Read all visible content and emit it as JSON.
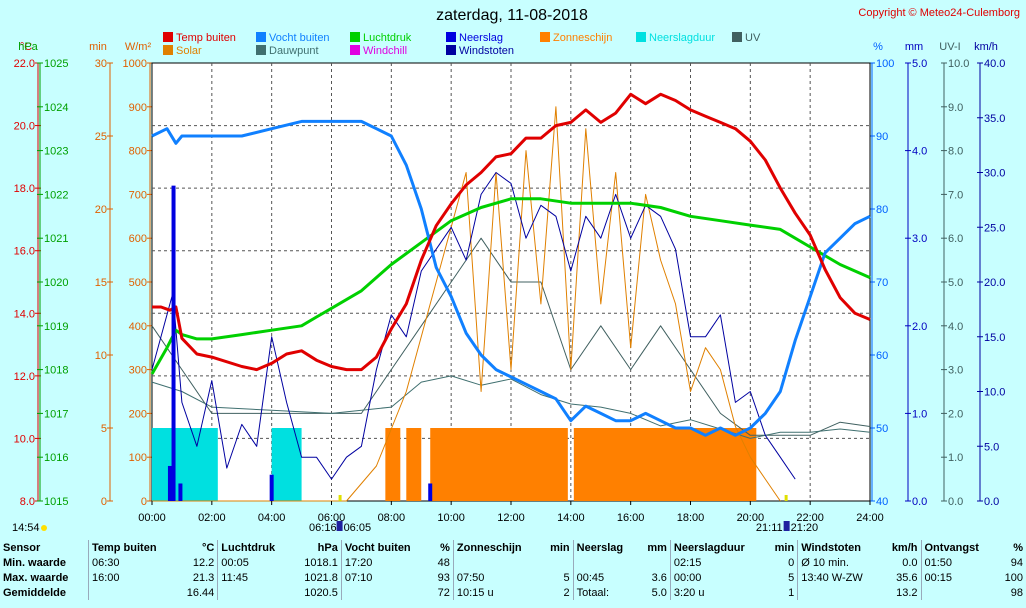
{
  "chart_data": {
    "type": "line",
    "title": "zaterdag, 11-08-2018",
    "copyright": "Copyright © Meteo24-Culemborg",
    "x_range_hours": [
      0,
      24
    ],
    "x_ticks": [
      "00:00",
      "02:00",
      "04:00",
      "06:00",
      "08:00",
      "10:00",
      "12:00",
      "14:00",
      "16:00",
      "18:00",
      "20:00",
      "22:00",
      "24:00"
    ],
    "axes": [
      {
        "unit": "°C",
        "color": "#e00000",
        "range": [
          8,
          22
        ],
        "ticks": [
          "8.0",
          "10.0",
          "12.0",
          "14.0",
          "16.0",
          "18.0",
          "20.0",
          "22.0"
        ]
      },
      {
        "unit": "hPa",
        "color": "#00a000",
        "range": [
          1015,
          1025
        ],
        "ticks": [
          "1015",
          "1016",
          "1017",
          "1018",
          "1019",
          "1020",
          "1021",
          "1022",
          "1023",
          "1024",
          "1025"
        ]
      },
      {
        "unit": "min",
        "color": "#e06000",
        "range": [
          0,
          30
        ],
        "ticks": [
          "0",
          "5",
          "10",
          "15",
          "20",
          "25",
          "30"
        ]
      },
      {
        "unit": "W/m²",
        "color": "#e06000",
        "range": [
          0,
          1000
        ],
        "ticks": [
          "0",
          "100",
          "200",
          "300",
          "400",
          "500",
          "600",
          "700",
          "800",
          "900",
          "1000"
        ]
      },
      {
        "unit": "%",
        "color": "#0060ff",
        "range": [
          40,
          100
        ],
        "ticks": [
          "40",
          "50",
          "60",
          "70",
          "80",
          "90",
          "100"
        ]
      },
      {
        "unit": "mm",
        "color": "#0000c0",
        "range": [
          0,
          5
        ],
        "ticks": [
          "0.0",
          "1.0",
          "2.0",
          "3.0",
          "4.0",
          "5.0"
        ]
      },
      {
        "unit": "UV-I",
        "color": "#406060",
        "range": [
          0,
          10
        ],
        "ticks": [
          "0.0",
          "1.0",
          "2.0",
          "3.0",
          "4.0",
          "5.0",
          "6.0",
          "7.0",
          "8.0",
          "9.0",
          "10.0"
        ]
      },
      {
        "unit": "km/h",
        "color": "#0000a0",
        "range": [
          0,
          40
        ],
        "ticks": [
          "0.0",
          "5.0",
          "10.0",
          "15.0",
          "20.0",
          "25.0",
          "30.0",
          "35.0",
          "40.0"
        ]
      }
    ],
    "legend": [
      {
        "label": "Temp buiten",
        "color": "#e00000"
      },
      {
        "label": "Vocht buiten",
        "color": "#1080ff"
      },
      {
        "label": "Luchtdruk",
        "color": "#00d000"
      },
      {
        "label": "Neerslag",
        "color": "#0000e0"
      },
      {
        "label": "Zonneschijn",
        "color": "#ff8000"
      },
      {
        "label": "Neerslagduur",
        "color": "#00e0e0"
      },
      {
        "label": "UV",
        "color": "#406060"
      },
      {
        "label": "Solar",
        "color": "#e08000"
      },
      {
        "label": "Dauwpunt",
        "color": "#407070"
      },
      {
        "label": "Windchill",
        "color": "#e000e0"
      },
      {
        "label": "Windstoten",
        "color": "#0000a0"
      }
    ],
    "series": [
      {
        "name": "Temp buiten",
        "unit": "°C",
        "x": [
          0,
          0.3,
          0.6,
          0.8,
          1.0,
          1.5,
          2.0,
          3.0,
          3.5,
          4.0,
          4.5,
          5.0,
          5.5,
          6.0,
          6.5,
          7.0,
          7.5,
          8.0,
          8.5,
          9.0,
          9.5,
          10.0,
          10.5,
          11.0,
          11.5,
          12.0,
          12.5,
          13.0,
          13.5,
          14.0,
          14.5,
          15.0,
          15.5,
          16.0,
          16.5,
          17.0,
          17.5,
          18.0,
          18.5,
          19.0,
          19.5,
          20.0,
          20.5,
          21.0,
          21.5,
          22.0,
          22.5,
          23.0,
          23.5,
          24.0
        ],
        "values": [
          14.2,
          14.2,
          14.1,
          14.2,
          13.2,
          12.7,
          12.6,
          12.3,
          12.2,
          12.4,
          12.7,
          12.8,
          12.5,
          12.3,
          12.2,
          12.2,
          12.6,
          13.5,
          14.3,
          15.7,
          16.8,
          17.5,
          18.1,
          18.5,
          19.0,
          19.1,
          19.6,
          19.6,
          20.0,
          20.1,
          20.5,
          20.1,
          20.4,
          21.0,
          20.7,
          21.0,
          20.8,
          20.5,
          20.3,
          20.1,
          19.9,
          19.5,
          18.9,
          18.0,
          17.2,
          16.5,
          15.4,
          14.5,
          14.0,
          13.8
        ]
      },
      {
        "name": "Vocht buiten",
        "unit": "%",
        "x": [
          0,
          0.5,
          0.8,
          1.0,
          1.5,
          2.0,
          3.0,
          4.0,
          5.0,
          6.0,
          7.0,
          7.5,
          8.0,
          8.5,
          9.0,
          9.5,
          10.0,
          10.5,
          11.0,
          11.5,
          12.0,
          12.5,
          13.0,
          13.5,
          14.0,
          14.5,
          15.0,
          15.5,
          16.0,
          16.5,
          17.0,
          17.5,
          18.0,
          18.5,
          19.0,
          19.5,
          20.0,
          20.5,
          21.0,
          21.5,
          22.0,
          22.5,
          23.0,
          23.5,
          24.0
        ],
        "values": [
          90,
          91,
          89,
          90,
          90,
          90,
          90,
          91,
          92,
          92,
          92,
          91,
          90,
          86,
          80,
          72,
          68,
          63,
          60,
          58,
          57,
          56,
          55,
          54,
          51,
          53,
          52,
          51,
          51,
          52,
          51,
          50,
          50,
          49,
          50,
          49,
          50,
          52,
          55,
          62,
          68,
          74,
          76,
          78,
          79
        ]
      },
      {
        "name": "Luchtdruk",
        "unit": "hPa",
        "x": [
          0,
          0.5,
          0.8,
          1.0,
          1.5,
          2.0,
          3.0,
          4.0,
          5.0,
          5.5,
          6.0,
          7.0,
          8.0,
          9.0,
          10.0,
          11.0,
          12.0,
          13.0,
          14.0,
          15.0,
          16.0,
          17.0,
          18.0,
          19.0,
          20.0,
          21.0,
          21.5,
          22.0,
          23.0,
          24.0
        ],
        "values": [
          1017.9,
          1018.5,
          1018.9,
          1018.8,
          1018.7,
          1018.7,
          1018.8,
          1018.9,
          1019.0,
          1019.2,
          1019.4,
          1019.8,
          1020.4,
          1020.9,
          1021.4,
          1021.7,
          1021.9,
          1021.9,
          1021.8,
          1021.8,
          1021.8,
          1021.7,
          1021.5,
          1021.4,
          1021.3,
          1021.2,
          1021.0,
          1020.8,
          1020.4,
          1020.1
        ]
      },
      {
        "name": "Neerslag",
        "unit": "mm",
        "bars": [
          {
            "x": 0.6,
            "value": 0.4
          },
          {
            "x": 0.72,
            "value": 3.6
          },
          {
            "x": 0.95,
            "value": 0.2
          },
          {
            "x": 4.0,
            "value": 0.3
          },
          {
            "x": 9.3,
            "value": 0.2
          }
        ]
      },
      {
        "name": "Neerslagduur",
        "unit": "min",
        "blocks": [
          [
            0,
            2.2
          ],
          [
            4.0,
            5.0
          ]
        ],
        "value": 5
      },
      {
        "name": "Zonneschijn",
        "unit": "min",
        "blocks": [
          [
            7.8,
            8.3
          ],
          [
            8.5,
            9.0
          ],
          [
            9.3,
            13.9
          ],
          [
            14.1,
            20.2
          ]
        ],
        "value": 5
      },
      {
        "name": "Windstoten",
        "unit": "km/h",
        "x": [
          0,
          0.7,
          1.0,
          1.5,
          2.0,
          2.5,
          3.0,
          3.5,
          4.0,
          4.5,
          5.0,
          5.5,
          6.0,
          6.5,
          7.0,
          7.5,
          8.0,
          8.5,
          9.0,
          9.5,
          10.0,
          10.5,
          11.0,
          11.5,
          12.0,
          12.5,
          13.0,
          13.5,
          14.0,
          14.5,
          15.0,
          15.5,
          16.0,
          16.5,
          17.0,
          17.5,
          18.0,
          18.5,
          19.0,
          19.5,
          20.0,
          20.5,
          21.0,
          21.5
        ],
        "values": [
          12,
          19,
          9,
          5,
          11,
          3,
          7,
          5,
          15,
          9,
          4,
          4,
          2,
          4,
          5,
          12,
          17,
          15,
          21,
          23,
          25,
          22,
          28,
          30,
          29,
          24,
          27,
          26,
          21,
          26,
          24,
          28,
          24,
          27,
          26,
          23,
          15,
          15,
          17,
          9,
          10,
          6,
          4,
          2
        ]
      },
      {
        "name": "UV",
        "unit": "UV-I",
        "x": [
          0,
          1,
          2,
          3,
          4,
          5,
          6,
          7,
          8,
          9,
          10,
          11,
          12,
          13,
          14,
          15,
          16,
          17,
          18,
          19,
          20,
          21,
          22,
          23,
          24
        ],
        "values": [
          4,
          3,
          2,
          2,
          2,
          2,
          2,
          2,
          3,
          4,
          5,
          6,
          5,
          5,
          3,
          4,
          3,
          4,
          3,
          2,
          1.5,
          1.5,
          1.5,
          1.8,
          1.7
        ]
      },
      {
        "name": "Solar",
        "unit": "W/m²",
        "x": [
          0,
          6.5,
          7.5,
          8.5,
          9.5,
          10.5,
          11.0,
          11.5,
          12.0,
          12.5,
          13.0,
          13.5,
          14.0,
          14.5,
          15.0,
          15.5,
          16.0,
          16.5,
          17.0,
          17.5,
          18.0,
          18.5,
          19.0,
          19.5,
          20.0,
          20.5,
          21.0
        ],
        "values": [
          0,
          0,
          80,
          250,
          500,
          750,
          250,
          750,
          300,
          800,
          450,
          900,
          300,
          850,
          450,
          750,
          350,
          700,
          550,
          450,
          250,
          350,
          300,
          170,
          100,
          50,
          0
        ]
      },
      {
        "name": "Dauwpunt",
        "unit": "°C",
        "x": [
          0,
          1,
          2,
          4,
          6,
          8,
          9,
          10,
          11,
          12,
          13,
          14,
          15,
          16,
          17,
          18,
          19,
          20,
          21,
          22,
          23,
          24
        ],
        "values": [
          11.8,
          11.5,
          11.0,
          10.9,
          10.8,
          11.0,
          11.8,
          12.0,
          11.7,
          11.9,
          11.4,
          11.1,
          11.0,
          10.8,
          10.4,
          10.6,
          10.3,
          10.0,
          10.2,
          10.2,
          10.3,
          10.2
        ]
      }
    ],
    "sun_markers": [
      {
        "label": "14:54",
        "hour": -1
      },
      {
        "label": "06:16",
        "hour": 6.27
      },
      {
        "label": "06:05",
        "hour": 6.08
      },
      {
        "label": "21:11",
        "hour": 21.18
      },
      {
        "label": "21:20",
        "hour": 21.33
      }
    ]
  },
  "table": {
    "headers": [
      {
        "label": "Sensor",
        "unit": ""
      },
      {
        "label": "Temp buiten",
        "unit": "°C"
      },
      {
        "label": "Luchtdruk",
        "unit": "hPa"
      },
      {
        "label": "Vocht buiten",
        "unit": "%"
      },
      {
        "label": "Zonneschijn",
        "unit": "min"
      },
      {
        "label": "Neerslag",
        "unit": "mm"
      },
      {
        "label": "Neerslagduur",
        "unit": "min"
      },
      {
        "label": "Windstoten",
        "unit": "km/h"
      },
      {
        "label": "Ontvangst",
        "unit": "%"
      }
    ],
    "rows": [
      {
        "label": "Min. waarde",
        "cells": [
          [
            "06:30",
            "12.2"
          ],
          [
            "00:05",
            "1018.1"
          ],
          [
            "17:20",
            "48"
          ],
          [
            "",
            ""
          ],
          [
            "",
            ""
          ],
          [
            "02:15",
            "0"
          ],
          [
            "Ø 10 min.",
            "0.0"
          ],
          [
            "01:50",
            "94"
          ]
        ]
      },
      {
        "label": "Max. waarde",
        "cells": [
          [
            "16:00",
            "21.3"
          ],
          [
            "11:45",
            "1021.8"
          ],
          [
            "07:10",
            "93"
          ],
          [
            "07:50",
            "5"
          ],
          [
            "00:45",
            "3.6"
          ],
          [
            "00:00",
            "5"
          ],
          [
            "13:40  W-ZW",
            "35.6"
          ],
          [
            "00:15",
            "100"
          ]
        ]
      },
      {
        "label": "Gemiddelde",
        "cells": [
          [
            "",
            "16.44"
          ],
          [
            "",
            "1020.5"
          ],
          [
            "",
            "72"
          ],
          [
            "10:15 u",
            "2"
          ],
          [
            "Totaal:",
            "5.0"
          ],
          [
            "3:20 u",
            "1"
          ],
          [
            "",
            "13.2"
          ],
          [
            "",
            "98"
          ]
        ]
      }
    ]
  }
}
